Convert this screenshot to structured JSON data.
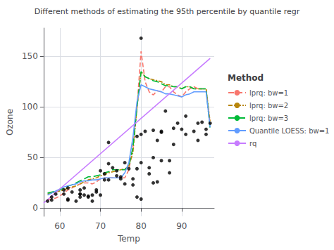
{
  "chart_data": {
    "type": "line",
    "title": "Different methods of estimating the 95th percentile by quantile regr",
    "xlabel": "Temp",
    "ylabel": "Ozone",
    "xlim": [
      56,
      98
    ],
    "ylim": [
      -8,
      178
    ],
    "xticks": [
      60,
      70,
      80,
      90
    ],
    "yticks": [
      0,
      50,
      100,
      150
    ],
    "grid": true,
    "legend": "right",
    "legend_title": "Method",
    "series": [
      {
        "type": "scatter",
        "color": "black",
        "marker": "circle",
        "x": [
          57,
          58,
          58,
          59,
          61,
          61,
          62,
          62,
          62,
          63,
          64,
          65,
          65,
          65,
          65,
          66,
          66,
          67,
          67,
          68,
          68,
          69,
          69,
          70,
          70,
          71,
          71,
          72,
          72,
          72,
          73,
          74,
          74,
          75,
          75,
          76,
          76,
          77,
          78,
          78,
          79,
          79,
          79,
          80,
          80,
          80,
          80,
          81,
          82,
          82,
          83,
          83,
          83,
          84,
          84,
          85,
          85,
          85,
          86,
          87,
          87,
          88,
          88,
          89,
          90,
          91,
          91,
          93,
          94,
          94,
          95,
          96,
          96,
          97
        ],
        "values": [
          7,
          8,
          11,
          14,
          18,
          14,
          20,
          8,
          9,
          16,
          7,
          11,
          14,
          18,
          14,
          20,
          13,
          11,
          12,
          13,
          7,
          16,
          18,
          13,
          37,
          34,
          28,
          44,
          28,
          65,
          40,
          37,
          32,
          31,
          29,
          24,
          45,
          39,
          29,
          23,
          71,
          39,
          11,
          9,
          45,
          168,
          73,
          76,
          40,
          34,
          25,
          77,
          50,
          26,
          67,
          75,
          76,
          47,
          96,
          47,
          35,
          79,
          63,
          84,
          78,
          73,
          91,
          76,
          67,
          84,
          85,
          78,
          73,
          84
        ]
      },
      {
        "name": "lprq: bw=1",
        "type": "line",
        "color": "#F8766D",
        "line_style": "dashed",
        "x": [
          57,
          58,
          59,
          60,
          61,
          62,
          63,
          64,
          65,
          66,
          67,
          68,
          69,
          70,
          71,
          72,
          73,
          74,
          75,
          76,
          77,
          78,
          79,
          80,
          81,
          82,
          83,
          84,
          85,
          86,
          87,
          88,
          89,
          90,
          91,
          92,
          93,
          94,
          95,
          96,
          97
        ],
        "values": [
          8,
          9,
          10,
          12,
          15,
          18,
          20,
          22,
          24,
          25,
          25,
          24,
          26,
          29,
          30,
          30,
          30,
          30,
          30,
          30,
          38,
          60,
          100,
          155,
          125,
          115,
          112,
          116,
          115,
          120,
          120,
          115,
          112,
          110,
          115,
          118,
          120,
          118,
          118,
          118,
          83
        ]
      },
      {
        "name": "lprq: bw=2",
        "type": "line",
        "color": "#B8860B",
        "line_style": "dashdot",
        "x": [
          57,
          58,
          59,
          60,
          61,
          62,
          63,
          64,
          65,
          66,
          67,
          68,
          69,
          70,
          71,
          72,
          73,
          74,
          75,
          76,
          77,
          78,
          79,
          80,
          81,
          82,
          83,
          84,
          85,
          86,
          87,
          88,
          89,
          90,
          91,
          92,
          93,
          94,
          95,
          96,
          97
        ],
        "values": [
          14,
          15,
          16,
          17,
          18,
          20,
          21,
          22,
          24,
          26,
          28,
          29,
          30,
          32,
          33,
          35,
          36,
          37,
          38,
          39,
          42,
          55,
          100,
          135,
          130,
          128,
          127,
          126,
          125,
          122,
          122,
          120,
          120,
          118,
          120,
          120,
          118,
          118,
          118,
          118,
          85
        ]
      },
      {
        "name": "lprq: bw=3",
        "type": "line",
        "color": "#00BA38",
        "line_style": "longdash",
        "x": [
          57,
          58,
          59,
          60,
          61,
          62,
          63,
          64,
          65,
          66,
          67,
          68,
          69,
          70,
          71,
          72,
          73,
          74,
          75,
          76,
          77,
          78,
          79,
          80,
          81,
          82,
          83,
          84,
          85,
          86,
          87,
          88,
          89,
          90,
          91,
          92,
          93,
          94,
          95,
          96,
          97
        ],
        "values": [
          15,
          16,
          17,
          18,
          20,
          22,
          23,
          25,
          27,
          29,
          31,
          31,
          32,
          33,
          35,
          36,
          38,
          38,
          38,
          38,
          42,
          60,
          100,
          135,
          130,
          128,
          126,
          125,
          123,
          121,
          121,
          120,
          120,
          118,
          120,
          120,
          118,
          118,
          118,
          118,
          78
        ]
      },
      {
        "name": "Quantile LOESS: bw=1",
        "type": "line",
        "color": "#619CFF",
        "line_style": "solid",
        "x": [
          57,
          58,
          59,
          60,
          61,
          62,
          63,
          64,
          65,
          66,
          67,
          68,
          69,
          70,
          71,
          72,
          73,
          74,
          75,
          76,
          77,
          78,
          79,
          80,
          81,
          82,
          83,
          84,
          85,
          86,
          87,
          88,
          89,
          90,
          91,
          92,
          93,
          94,
          95,
          96,
          97
        ],
        "values": [
          13,
          15,
          17,
          19,
          21,
          22,
          23,
          24,
          26,
          27,
          27,
          28,
          28,
          29,
          30,
          30,
          30,
          30,
          30,
          35,
          45,
          70,
          105,
          122,
          120,
          118,
          117,
          116,
          115,
          113,
          113,
          112,
          111,
          110,
          112,
          113,
          115,
          115,
          115,
          115,
          80
        ]
      },
      {
        "name": "rq",
        "type": "line",
        "color": "#C77CFF",
        "line_style": "solid",
        "x": [
          56,
          97
        ],
        "values": [
          5,
          148
        ]
      }
    ]
  }
}
